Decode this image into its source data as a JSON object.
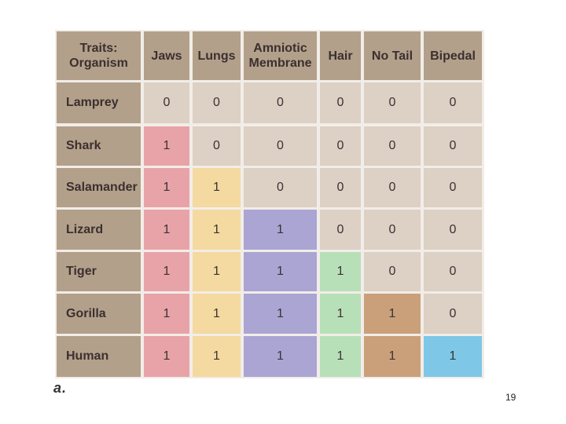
{
  "table": {
    "corner_header": [
      "Traits:",
      "Organism"
    ],
    "columns": [
      {
        "lines": [
          "Jaws"
        ],
        "fill": "#e8a3a8"
      },
      {
        "lines": [
          "Lungs"
        ],
        "fill": "#f4d9a0"
      },
      {
        "lines": [
          "Amniotic",
          "Membrane"
        ],
        "fill": "#aba5d4"
      },
      {
        "lines": [
          "Hair"
        ],
        "fill": "#b8e0b8"
      },
      {
        "lines": [
          "No Tail"
        ],
        "fill": "#c9a07a"
      },
      {
        "lines": [
          "Bipedal"
        ],
        "fill": "#7ec7e6"
      }
    ],
    "rows": [
      {
        "organism": "Lamprey",
        "values": [
          "0",
          "0",
          "0",
          "0",
          "0",
          "0"
        ]
      },
      {
        "organism": "Shark",
        "values": [
          "1",
          "0",
          "0",
          "0",
          "0",
          "0"
        ]
      },
      {
        "organism": "Salamander",
        "values": [
          "1",
          "1",
          "0",
          "0",
          "0",
          "0"
        ]
      },
      {
        "organism": "Lizard",
        "values": [
          "1",
          "1",
          "1",
          "0",
          "0",
          "0"
        ]
      },
      {
        "organism": "Tiger",
        "values": [
          "1",
          "1",
          "1",
          "1",
          "0",
          "0"
        ]
      },
      {
        "organism": "Gorilla",
        "values": [
          "1",
          "1",
          "1",
          "1",
          "1",
          "0"
        ]
      },
      {
        "organism": "Human",
        "values": [
          "1",
          "1",
          "1",
          "1",
          "1",
          "1"
        ]
      }
    ],
    "colors": {
      "header_bg": "#b3a08a",
      "label_bg": "#b3a08a",
      "zero_bg": "#ddd0c4"
    }
  },
  "figure_label": "a.",
  "page_number": "19"
}
